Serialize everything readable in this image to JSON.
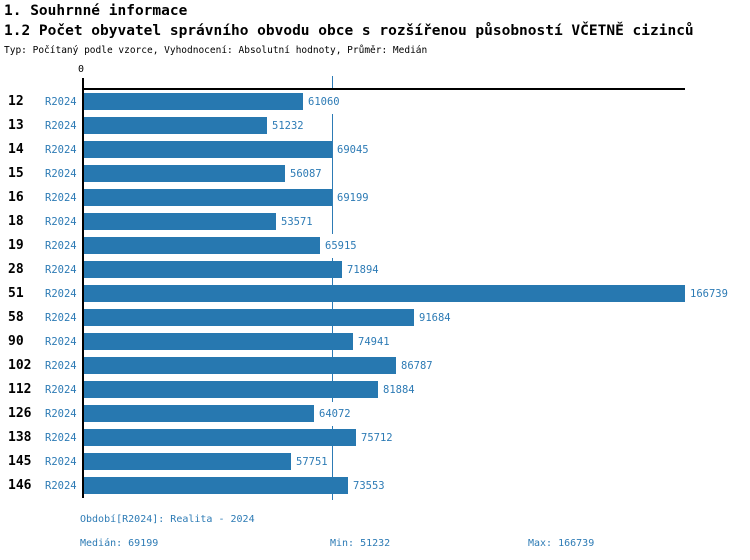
{
  "header": {
    "title1": "1. Souhrnné informace",
    "title2": "1.2 Počet obyvatel správního obvodu obce s rozšířenou působností VČETNĚ cizinců",
    "subtitle": "Typ: Počítaný podle vzorce, Vyhodnocení: Absolutní hodnoty, Průměr: Medián"
  },
  "chart_data": {
    "type": "bar",
    "orientation": "horizontal",
    "title": "1.2 Počet obyvatel správního obvodu obce s rozšířenou působností VČETNĚ cizinců",
    "categories": [
      "12",
      "13",
      "14",
      "15",
      "16",
      "18",
      "19",
      "28",
      "51",
      "58",
      "90",
      "102",
      "112",
      "126",
      "138",
      "145",
      "146"
    ],
    "series_label": "R2024",
    "values": [
      61060,
      51232,
      69045,
      56087,
      69199,
      53571,
      65915,
      71894,
      166739,
      91684,
      74941,
      86787,
      81884,
      64072,
      75712,
      57751,
      73553
    ],
    "xlim": [
      0,
      166739
    ],
    "x_axis_origin_label": "0",
    "median_line_value": 69199,
    "grid": "off",
    "legend": "none",
    "bar_color": "#2778b0",
    "label_color": "#2d7bb5"
  },
  "footer": {
    "period": "Období[R2024]: Realita - 2024",
    "median": "Medián: 69199",
    "min": "Min: 51232",
    "max": "Max: 166739"
  }
}
